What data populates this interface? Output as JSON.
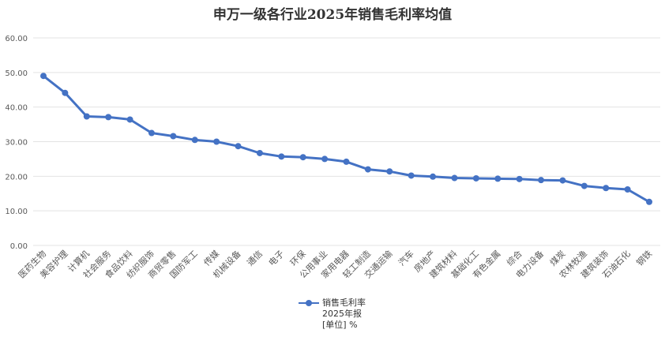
{
  "chart_data": {
    "type": "line",
    "title": "申万一级各行业2025年销售毛利率均值",
    "categories": [
      "医药生物",
      "美容护理",
      "计算机",
      "社会服务",
      "食品饮料",
      "纺织服饰",
      "商贸零售",
      "国防军工",
      "传媒",
      "机械设备",
      "通信",
      "电子",
      "环保",
      "公用事业",
      "家用电器",
      "轻工制造",
      "交通运输",
      "汽车",
      "房地产",
      "建筑材料",
      "基础化工",
      "有色金属",
      "综合",
      "电力设备",
      "煤炭",
      "农林牧渔",
      "建筑装饰",
      "石油石化",
      "钢铁"
    ],
    "series": [
      {
        "name": "销售毛利率",
        "values": [
          49.0,
          44.1,
          37.3,
          37.1,
          36.4,
          32.5,
          31.6,
          30.5,
          30.0,
          28.7,
          26.7,
          25.7,
          25.5,
          25.0,
          24.2,
          22.0,
          21.4,
          20.2,
          19.9,
          19.5,
          19.4,
          19.3,
          19.2,
          18.9,
          18.8,
          17.2,
          16.6,
          16.2,
          12.6
        ]
      }
    ],
    "legend": {
      "series_label": "销售毛利率",
      "sub1": "2025年报",
      "sub2": "[单位] %",
      "position": "bottom"
    },
    "ylim": [
      0,
      60
    ],
    "yticks": [
      "0.00",
      "10.00",
      "20.00",
      "30.00",
      "40.00",
      "50.00",
      "60.00"
    ],
    "grid": true,
    "color": "#4472c4"
  }
}
